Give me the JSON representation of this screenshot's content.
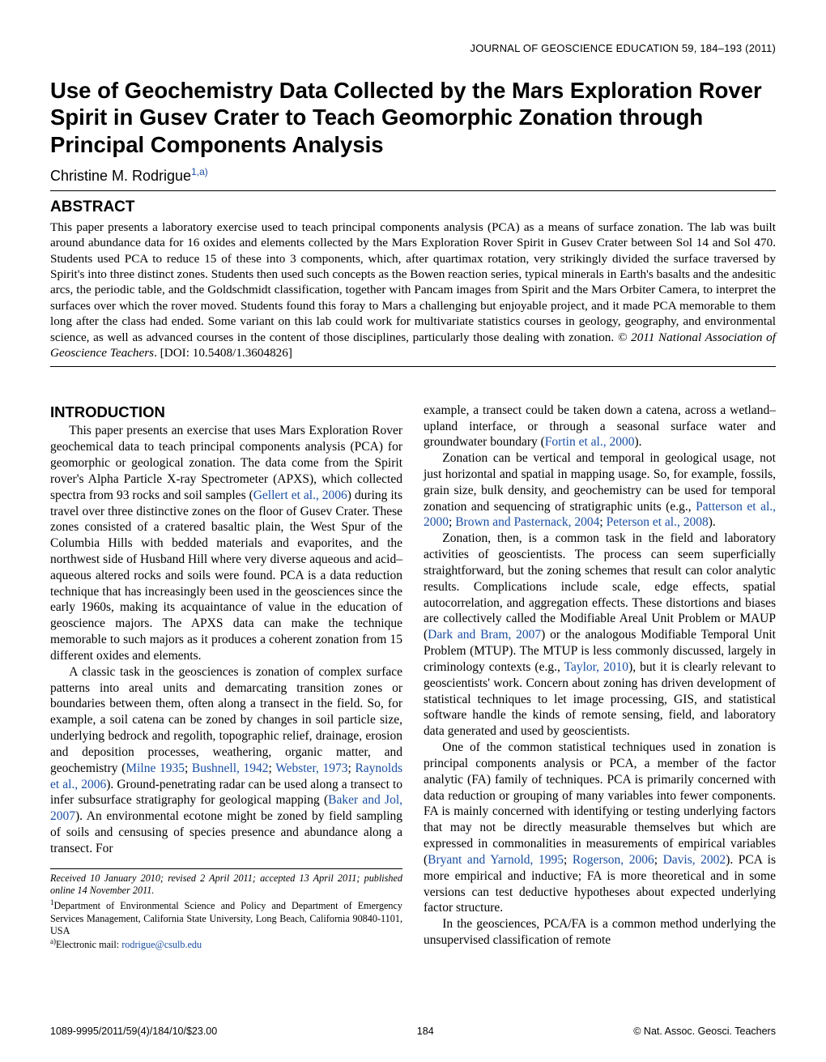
{
  "journal_header": "JOURNAL OF GEOSCIENCE EDUCATION 59, 184–193 (2011)",
  "title": "Use of Geochemistry Data Collected by the Mars Exploration Rover Spirit in Gusev Crater to Teach Geomorphic Zonation through Principal Components Analysis",
  "author": "Christine M. Rodrigue",
  "author_aff_mark": "1,a)",
  "abstract_heading": "ABSTRACT",
  "abstract": "This paper presents a laboratory exercise used to teach principal components analysis (PCA) as a means of surface zonation. The lab was built around abundance data for 16 oxides and elements collected by the Mars Exploration Rover Spirit in Gusev Crater between Sol 14 and Sol 470. Students used PCA to reduce 15 of these into 3 components, which, after quartimax rotation, very strikingly divided the surface traversed by Spirit's into three distinct zones. Students then used such concepts as the Bowen reaction series, typical minerals in Earth's basalts and the andesitic arcs, the periodic table, and the Goldschmidt classification, together with Pancam images from Spirit and the Mars Orbiter Camera, to interpret the surfaces over which the rover moved. Students found this foray to Mars a challenging but enjoyable project, and it made PCA memorable to them long after the class had ended. Some variant on this lab could work for multivariate statistics courses in geology, geography, and environmental science, as well as advanced courses in the content of those disciplines, particularly those dealing with zonation. ",
  "copyright_line": "© 2011 National Association of Geoscience Teachers",
  "doi_line": ". [DOI: 10.5408/1.3604826]",
  "intro_heading": "INTRODUCTION",
  "intro_p1": "This paper presents an exercise that uses Mars Exploration Rover geochemical data to teach principal components analysis (PCA) for geomorphic or geological zonation. The data come from the Spirit rover's Alpha Particle X-ray Spectrometer (APXS), which collected spectra from 93 rocks and soil samples (Gellert et al., 2006) during its travel over three distinctive zones on the floor of Gusev Crater. These zones consisted of a cratered basaltic plain, the West Spur of the Columbia Hills with bedded materials and evaporites, and the northwest side of Husband Hill where very diverse aqueous and acid–aqueous altered rocks and soils were found. PCA is a data reduction technique that has increasingly been used in the geosciences since the early 1960s, making its acquaintance of value in the education of geoscience majors. The APXS data can make the technique memorable to such majors as it produces a coherent zonation from 15 different oxides and elements.",
  "intro_p2": "A classic task in the geosciences is zonation of complex surface patterns into areal units and demarcating transition zones or boundaries between them, often along a transect in the field. So, for example, a soil catena can be zoned by changes in soil particle size, underlying bedrock and regolith, topographic relief, drainage, erosion and deposition processes, weathering, organic matter, and geochemistry (Milne 1935; Bushnell, 1942; Webster, 1973; Raynolds et al., 2006). Ground-penetrating radar can be used along a transect to infer subsurface stratigraphy for geological mapping (Baker and Jol, 2007). An environmental ecotone might be zoned by field sampling of soils and censusing of species presence and abundance along a transect. For",
  "col2_p0": "example, a transect could be taken down a catena, across a wetland–upland interface, or through a seasonal surface water and groundwater boundary (Fortin et al., 2000).",
  "col2_p1": "Zonation can be vertical and temporal in geological usage, not just horizontal and spatial in mapping usage. So, for example, fossils, grain size, bulk density, and geochemistry can be used for temporal zonation and sequencing of stratigraphic units (e.g., Patterson et al., 2000; Brown and Pasternack, 2004; Peterson et al., 2008).",
  "col2_p2": "Zonation, then, is a common task in the field and laboratory activities of geoscientists. The process can seem superficially straightforward, but the zoning schemes that result can color analytic results. Complications include scale, edge effects, spatial autocorrelation, and aggregation effects. These distortions and biases are collectively called the Modifiable Areal Unit Problem or MAUP (Dark and Bram, 2007) or the analogous Modifiable Temporal Unit Problem (MTUP). The MTUP is less commonly discussed, largely in criminology contexts (e.g., Taylor, 2010), but it is clearly relevant to geoscientists' work. Concern about zoning has driven development of statistical techniques to let image processing, GIS, and statistical software handle the kinds of remote sensing, field, and laboratory data generated and used by geoscientists.",
  "col2_p3": "One of the common statistical techniques used in zonation is principal components analysis or PCA, a member of the factor analytic (FA) family of techniques. PCA is primarily concerned with data reduction or grouping of many variables into fewer components. FA is mainly concerned with identifying or testing underlying factors that may not be directly measurable themselves but which are expressed in commonalities in measurements of empirical variables (Bryant and Yarnold, 1995; Rogerson, 2006; Davis, 2002). PCA is more empirical and inductive; FA is more theoretical and in some versions can test deductive hypotheses about expected underlying factor structure.",
  "col2_p4": "In the geosciences, PCA/FA is a common method underlying the unsupervised classification of remote",
  "fn_received": "Received 10 January 2010; revised 2 April 2011; accepted 13 April 2011; published online 14 November 2011.",
  "fn_aff": "Department of Environmental Science and Policy and Department of Emergency Services Management, California State University, Long Beach, California 90840-1101, USA",
  "fn_email_label": "Electronic mail: ",
  "fn_email": "rodrigue@csulb.edu",
  "footer_left": "1089-9995/2011/59(4)/184/10/$23.00",
  "footer_center": "184",
  "footer_right": "© Nat. Assoc. Geosci. Teachers",
  "colors": {
    "text": "#000000",
    "link": "#1a4fa3",
    "background": "#ffffff"
  },
  "links": {
    "gellert": "Gellert et al., 2006",
    "milne": "Milne 1935",
    "bushnell": "Bushnell, 1942",
    "webster": "Webster, 1973",
    "raynolds": "Raynolds et al., 2006",
    "baker": "Baker and Jol, 2007",
    "fortin": "Fortin et al., 2000",
    "patterson": "Patterson et al., 2000",
    "brown": "Brown and Pasternack, 2004",
    "peterson": "Peterson et al., 2008",
    "dark": "Dark and Bram, 2007",
    "taylor": "Taylor, 2010",
    "bryant": "Bryant and Yarnold, 1995",
    "rogerson": "Rogerson, 2006",
    "davis": "Davis, 2002"
  }
}
